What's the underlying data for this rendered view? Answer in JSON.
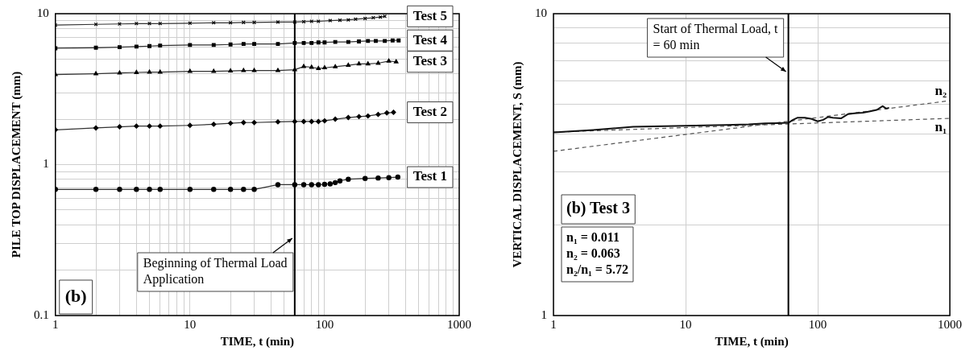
{
  "chart_data": [
    {
      "type": "line",
      "xlabel": "TIME, t (min)",
      "ylabel": "PILE TOP DISPLACEMENT (mm)",
      "log": "xy",
      "grid": true,
      "legend": false,
      "line_style": "solid",
      "xlim": [
        1,
        1000
      ],
      "ylim": [
        0.1,
        10
      ],
      "xticks": [
        1,
        {
          "value": 2,
          "label": null
        },
        {
          "value": 3,
          "label": null
        },
        {
          "value": 4,
          "label": null
        },
        {
          "value": 5,
          "label": null
        },
        {
          "value": 6,
          "label": null
        },
        {
          "value": 7,
          "label": null
        },
        {
          "value": 8,
          "label": null
        },
        {
          "value": 9,
          "label": null
        },
        10,
        {
          "value": 20,
          "label": null
        },
        {
          "value": 30,
          "label": null
        },
        {
          "value": 40,
          "label": null
        },
        {
          "value": 50,
          "label": null
        },
        {
          "value": 60,
          "label": null
        },
        {
          "value": 70,
          "label": null
        },
        {
          "value": 80,
          "label": null
        },
        {
          "value": 90,
          "label": null
        },
        100,
        {
          "value": 200,
          "label": null
        },
        {
          "value": 300,
          "label": null
        },
        {
          "value": 400,
          "label": null
        },
        {
          "value": 500,
          "label": null
        },
        {
          "value": 600,
          "label": null
        },
        {
          "value": 700,
          "label": null
        },
        {
          "value": 800,
          "label": null
        },
        {
          "value": 900,
          "label": null
        },
        1000
      ],
      "yticks": [
        0.1,
        {
          "value": 0.2,
          "label": null
        },
        {
          "value": 0.3,
          "label": null
        },
        {
          "value": 0.4,
          "label": null
        },
        {
          "value": 0.5,
          "label": null
        },
        {
          "value": 0.6,
          "label": null
        },
        {
          "value": 0.7,
          "label": null
        },
        {
          "value": 0.8,
          "label": null
        },
        {
          "value": 0.9,
          "label": null
        },
        1,
        {
          "value": 2,
          "label": null
        },
        {
          "value": 3,
          "label": null
        },
        {
          "value": 4,
          "label": null
        },
        {
          "value": 5,
          "label": null
        },
        {
          "value": 6,
          "label": null
        },
        {
          "value": 7,
          "label": null
        },
        {
          "value": 8,
          "label": null
        },
        {
          "value": 9,
          "label": null
        },
        10
      ],
      "series": [
        {
          "name": "Test 5",
          "color": "#333333",
          "marker": "cross",
          "x": [
            1,
            2,
            3,
            4,
            5,
            6,
            10,
            15,
            20,
            25,
            30,
            45,
            60,
            70,
            80,
            90,
            110,
            130,
            150,
            170,
            200,
            230,
            260,
            280
          ],
          "values": [
            8.4,
            8.5,
            8.55,
            8.6,
            8.6,
            8.6,
            8.65,
            8.7,
            8.7,
            8.75,
            8.75,
            8.8,
            8.8,
            8.85,
            8.9,
            8.9,
            9.0,
            9.05,
            9.1,
            9.2,
            9.3,
            9.4,
            9.5,
            9.6
          ]
        },
        {
          "name": "Test 4",
          "color": "#333333",
          "marker": "square",
          "x": [
            1,
            2,
            3,
            4,
            5,
            6,
            10,
            15,
            20,
            25,
            30,
            45,
            60,
            70,
            80,
            90,
            100,
            120,
            150,
            180,
            210,
            240,
            280,
            320,
            355
          ],
          "values": [
            5.9,
            5.95,
            6.0,
            6.05,
            6.1,
            6.15,
            6.2,
            6.2,
            6.25,
            6.3,
            6.3,
            6.3,
            6.4,
            6.4,
            6.4,
            6.45,
            6.45,
            6.5,
            6.5,
            6.55,
            6.6,
            6.6,
            6.6,
            6.65,
            6.65
          ]
        },
        {
          "name": "Test 3",
          "color": "#333333",
          "marker": "triangle",
          "x": [
            1,
            2,
            3,
            4,
            5,
            6,
            10,
            15,
            20,
            25,
            30,
            45,
            60,
            70,
            80,
            90,
            100,
            120,
            150,
            180,
            210,
            250,
            300,
            340
          ],
          "values": [
            3.95,
            4.0,
            4.05,
            4.08,
            4.1,
            4.1,
            4.15,
            4.15,
            4.18,
            4.2,
            4.2,
            4.2,
            4.25,
            4.47,
            4.42,
            4.33,
            4.38,
            4.45,
            4.55,
            4.65,
            4.65,
            4.7,
            4.85,
            4.8
          ]
        },
        {
          "name": "Test 2",
          "color": "#333333",
          "marker": "diamond",
          "x": [
            1,
            2,
            3,
            4,
            5,
            6,
            10,
            15,
            20,
            25,
            30,
            45,
            60,
            70,
            80,
            90,
            100,
            120,
            150,
            180,
            210,
            250,
            290,
            325
          ],
          "values": [
            1.7,
            1.75,
            1.78,
            1.8,
            1.8,
            1.8,
            1.82,
            1.85,
            1.88,
            1.9,
            1.9,
            1.92,
            1.93,
            1.93,
            1.93,
            1.93,
            1.95,
            2.0,
            2.05,
            2.08,
            2.1,
            2.15,
            2.2,
            2.22
          ]
        },
        {
          "name": "Test 1",
          "color": "#333333",
          "marker": "circle",
          "x": [
            1,
            2,
            3,
            4,
            5,
            6,
            10,
            15,
            20,
            25,
            30,
            45,
            60,
            70,
            80,
            90,
            100,
            110,
            120,
            130,
            150,
            200,
            250,
            300,
            350
          ],
          "values": [
            0.685,
            0.685,
            0.685,
            0.685,
            0.685,
            0.685,
            0.685,
            0.685,
            0.685,
            0.685,
            0.685,
            0.736,
            0.736,
            0.736,
            0.736,
            0.736,
            0.74,
            0.745,
            0.76,
            0.78,
            0.8,
            0.81,
            0.815,
            0.82,
            0.826
          ]
        }
      ],
      "ref_lines": [
        {
          "axis": "x",
          "value": 60,
          "label": "Beginning of Thermal Load Application",
          "color": "#000000"
        }
      ],
      "annotations": [
        "(b)"
      ]
    },
    {
      "type": "line",
      "xlabel": "TIME, t (min)",
      "ylabel": "VERTICAL DISPLACEMENT, S (mm)",
      "log": "xy",
      "grid": true,
      "legend": false,
      "marker": "none",
      "xlim": [
        1,
        1000
      ],
      "ylim": [
        1,
        10
      ],
      "xticks": [
        1,
        10,
        100,
        1000
      ],
      "yticks": [
        1,
        {
          "value": 2,
          "label": null
        },
        {
          "value": 3,
          "label": null
        },
        {
          "value": 4,
          "label": null
        },
        {
          "value": 5,
          "label": null
        },
        {
          "value": 6,
          "label": null
        },
        {
          "value": 7,
          "label": null
        },
        {
          "value": 8,
          "label": null
        },
        {
          "value": 9,
          "label": null
        },
        10
      ],
      "series": [
        {
          "color": "#111111",
          "line_style": "solid",
          "x": [
            1,
            2,
            4,
            10,
            20,
            30,
            40,
            50,
            60,
            65,
            70,
            80,
            90,
            100,
            110,
            120,
            130,
            150,
            170,
            190,
            220,
            250,
            280,
            310,
            330,
            347
          ],
          "values": [
            4.04,
            4.12,
            4.22,
            4.25,
            4.28,
            4.3,
            4.33,
            4.34,
            4.35,
            4.45,
            4.52,
            4.52,
            4.48,
            4.4,
            4.45,
            4.55,
            4.52,
            4.5,
            4.65,
            4.68,
            4.7,
            4.75,
            4.8,
            4.94,
            4.85,
            4.88
          ]
        },
        {
          "name": "n₁",
          "color": "#555555",
          "line_style": "dashed",
          "x": [
            1,
            1000
          ],
          "values": [
            4.05,
            4.5
          ]
        },
        {
          "name": "n₂",
          "color": "#555555",
          "line_style": "dashed",
          "x": [
            1,
            1000
          ],
          "values": [
            3.5,
            5.15
          ]
        }
      ],
      "ref_lines": [
        {
          "axis": "x",
          "value": 60,
          "label": "Start of Thermal Load, t = 60 min",
          "color": "#000000"
        }
      ],
      "annotations": [
        "(b) Test 3",
        "n₁ = 0.011",
        "n₂ = 0.063",
        "n₂/n₁ = 5.72"
      ]
    }
  ]
}
